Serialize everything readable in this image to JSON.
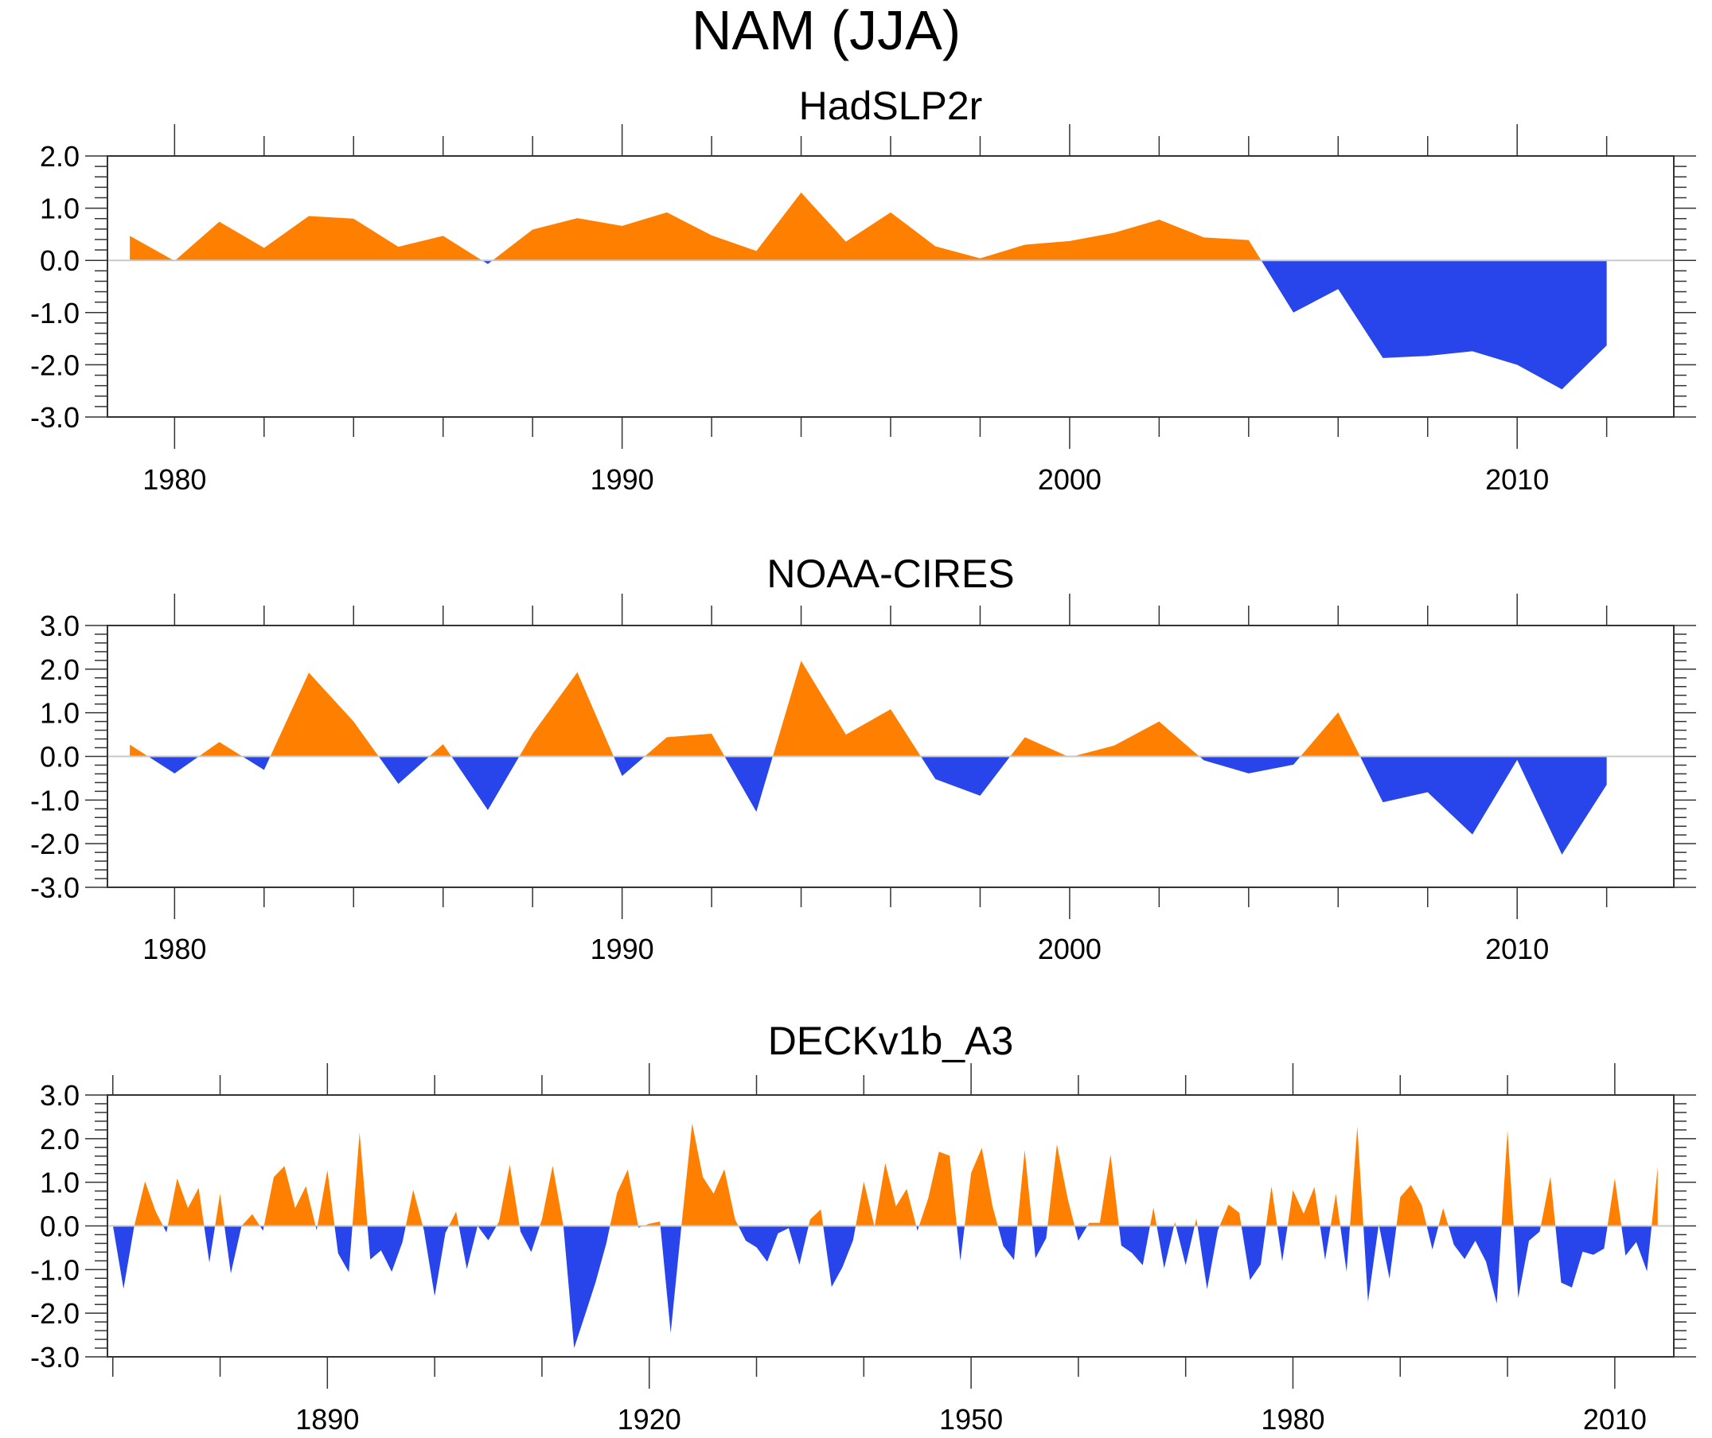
{
  "figure": {
    "title": "NAM (JJA)",
    "colors": {
      "positive": "#FF8000",
      "negative": "#2844EB",
      "zero_line": "#C8C8C8",
      "axis": "#333333"
    }
  },
  "chart_data": [
    {
      "type": "area",
      "title": "HadSLP2r",
      "xlabel": "",
      "ylabel": "",
      "xlim": [
        1978.5,
        2013.5
      ],
      "ylim": [
        -3.0,
        2.0
      ],
      "x_major_ticks": [
        1980,
        1990,
        2000,
        2010
      ],
      "x_tick_labels": [
        "1980",
        "1990",
        "2000",
        "2010"
      ],
      "x_minor_step": 2,
      "y_ticks": [
        2.0,
        1.0,
        0.0,
        -1.0,
        -2.0,
        -3.0
      ],
      "y_tick_labels": [
        "2.0",
        "1.0",
        "0.0",
        "-1.0",
        "-2.0",
        "-3.0"
      ],
      "y_minor_step": 0.2,
      "grid": false,
      "legend": "none",
      "fill_above_zero": "orange",
      "fill_below_zero": "blue",
      "x": [
        1979,
        1980,
        1981,
        1982,
        1983,
        1984,
        1985,
        1986,
        1987,
        1988,
        1989,
        1990,
        1991,
        1992,
        1993,
        1994,
        1995,
        1996,
        1997,
        1998,
        1999,
        2000,
        2001,
        2002,
        2003,
        2004,
        2005,
        2006,
        2007,
        2008,
        2009,
        2010,
        2011,
        2012
      ],
      "values": [
        0.47,
        -0.01,
        0.74,
        0.24,
        0.85,
        0.8,
        0.26,
        0.47,
        -0.07,
        0.59,
        0.81,
        0.66,
        0.92,
        0.48,
        0.18,
        1.3,
        0.36,
        0.92,
        0.27,
        0.04,
        0.3,
        0.37,
        0.53,
        0.78,
        0.44,
        0.39,
        -1.0,
        -0.55,
        -1.87,
        -1.83,
        -1.74,
        -2.0,
        -2.47,
        -1.63
      ]
    },
    {
      "type": "area",
      "title": "NOAA-CIRES",
      "xlabel": "",
      "ylabel": "",
      "xlim": [
        1978.5,
        2013.5
      ],
      "ylim": [
        -3.0,
        3.0
      ],
      "x_major_ticks": [
        1980,
        1990,
        2000,
        2010
      ],
      "x_tick_labels": [
        "1980",
        "1990",
        "2000",
        "2010"
      ],
      "x_minor_step": 2,
      "y_ticks": [
        3.0,
        2.0,
        1.0,
        0.0,
        -1.0,
        -2.0,
        -3.0
      ],
      "y_tick_labels": [
        "3.0",
        "2.0",
        "1.0",
        "0.0",
        "-1.0",
        "-2.0",
        "-3.0"
      ],
      "y_minor_step": 0.2,
      "grid": false,
      "legend": "none",
      "fill_above_zero": "orange",
      "fill_below_zero": "blue",
      "x": [
        1979,
        1980,
        1981,
        1982,
        1983,
        1984,
        1985,
        1986,
        1987,
        1988,
        1989,
        1990,
        1991,
        1992,
        1993,
        1994,
        1995,
        1996,
        1997,
        1998,
        1999,
        2000,
        2001,
        2002,
        2003,
        2004,
        2005,
        2006,
        2007,
        2008,
        2009,
        2010,
        2011,
        2012
      ],
      "values": [
        0.27,
        -0.39,
        0.33,
        -0.31,
        1.92,
        0.8,
        -0.63,
        0.28,
        -1.23,
        0.52,
        1.93,
        -0.45,
        0.44,
        0.52,
        -1.27,
        2.19,
        0.5,
        1.08,
        -0.52,
        -0.9,
        0.44,
        -0.02,
        0.25,
        0.8,
        -0.09,
        -0.39,
        -0.19,
        1.01,
        -1.05,
        -0.82,
        -1.79,
        -0.08,
        -2.25,
        -0.65
      ]
    },
    {
      "type": "area",
      "title": "DECKv1b_A3",
      "xlabel": "",
      "ylabel": "",
      "xlim": [
        1869.5,
        2015.5
      ],
      "ylim": [
        -3.0,
        3.0
      ],
      "x_major_ticks": [
        1890,
        1920,
        1950,
        1980,
        2010
      ],
      "x_tick_labels": [
        "1890",
        "1920",
        "1950",
        "1980",
        "2010"
      ],
      "x_minor_step": 10,
      "y_ticks": [
        3.0,
        2.0,
        1.0,
        0.0,
        -1.0,
        -2.0,
        -3.0
      ],
      "y_tick_labels": [
        "3.0",
        "2.0",
        "1.0",
        "0.0",
        "-1.0",
        "-2.0",
        "-3.0"
      ],
      "y_minor_step": 0.2,
      "grid": false,
      "legend": "none",
      "fill_above_zero": "orange",
      "fill_below_zero": "blue",
      "x_start": 1870,
      "values": [
        0.02,
        -1.44,
        0.0,
        1.02,
        0.33,
        -0.15,
        1.09,
        0.41,
        0.87,
        -0.84,
        0.74,
        -1.09,
        0.0,
        0.27,
        -0.11,
        1.12,
        1.37,
        0.41,
        0.91,
        -0.1,
        1.28,
        -0.63,
        -1.06,
        2.14,
        -0.77,
        -0.56,
        -1.05,
        -0.37,
        0.83,
        -0.1,
        -1.61,
        -0.16,
        0.33,
        -0.99,
        0.0,
        -0.33,
        0.1,
        1.4,
        -0.13,
        -0.6,
        0.15,
        1.38,
        0.0,
        -2.8,
        -2.05,
        -1.29,
        -0.4,
        0.76,
        1.29,
        -0.04,
        0.05,
        0.1,
        -2.45,
        0.0,
        2.35,
        1.12,
        0.74,
        1.3,
        0.15,
        -0.34,
        -0.49,
        -0.82,
        -0.17,
        -0.05,
        -0.89,
        0.15,
        0.38,
        -1.4,
        -0.95,
        -0.33,
        1.02,
        -0.02,
        1.44,
        0.45,
        0.85,
        -0.11,
        0.63,
        1.7,
        1.61,
        -0.8,
        1.21,
        1.79,
        0.45,
        -0.46,
        -0.78,
        1.74,
        -0.74,
        -0.28,
        1.87,
        0.63,
        -0.34,
        0.07,
        0.07,
        1.64,
        -0.45,
        -0.62,
        -0.9,
        0.42,
        -0.97,
        0.09,
        -0.9,
        0.17,
        -1.45,
        -0.1,
        0.49,
        0.3,
        -1.24,
        -0.88,
        0.91,
        -0.81,
        0.82,
        0.28,
        0.89,
        -0.78,
        0.74,
        -1.05,
        2.28,
        -1.74,
        0.04,
        -1.21,
        0.66,
        0.94,
        0.48,
        -0.54,
        0.41,
        -0.43,
        -0.76,
        -0.34,
        -0.82,
        -1.78,
        2.19,
        -1.65,
        -0.34,
        -0.13,
        1.13,
        -1.3,
        -1.41,
        -0.59,
        -0.66,
        -0.52,
        1.09,
        -0.68,
        -0.37,
        -1.04,
        1.35
      ]
    }
  ]
}
